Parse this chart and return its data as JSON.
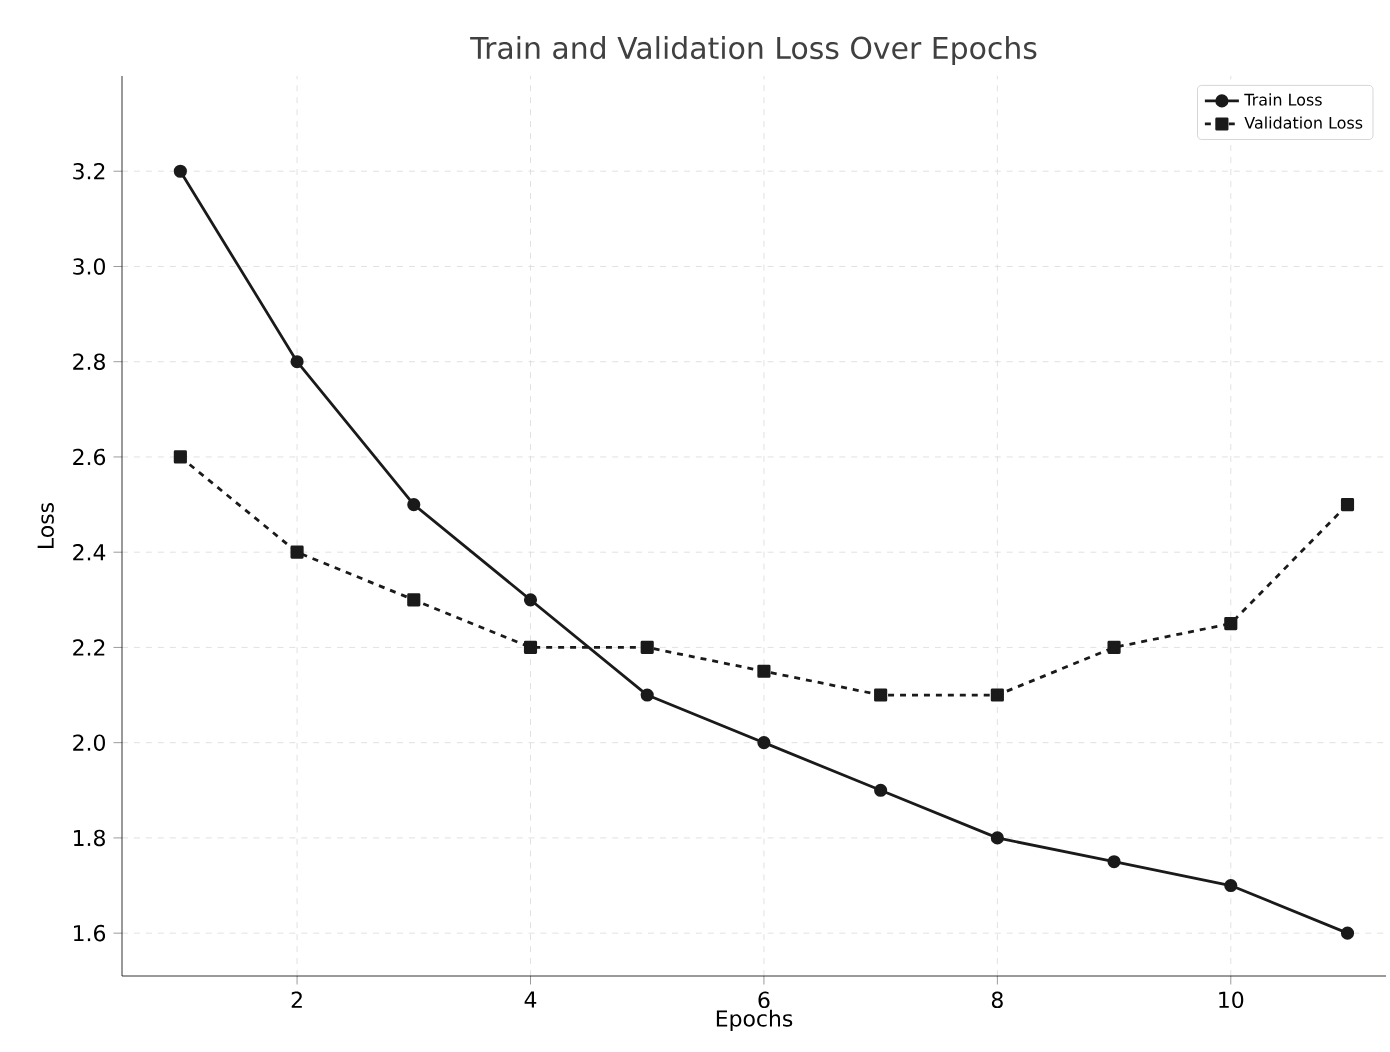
{
  "chart_data": {
    "type": "line",
    "title": "Train and Validation Loss Over Epochs",
    "xlabel": "Epochs",
    "ylabel": "Loss",
    "x": [
      1,
      2,
      3,
      4,
      5,
      6,
      7,
      8,
      9,
      10,
      11
    ],
    "series": [
      {
        "name": "Train Loss",
        "color": "#1a1a1a",
        "marker": "circle",
        "line_style": "solid",
        "values": [
          3.2,
          2.8,
          2.5,
          2.3,
          2.1,
          2.0,
          1.9,
          1.8,
          1.75,
          1.7,
          1.6
        ]
      },
      {
        "name": "Validation Loss",
        "color": "#1a1a1a",
        "marker": "square",
        "line_style": "dashed",
        "values": [
          2.6,
          2.4,
          2.3,
          2.2,
          2.2,
          2.15,
          2.1,
          2.1,
          2.2,
          2.25,
          2.5
        ]
      }
    ],
    "xlim": [
      0.5,
      11.33
    ],
    "ylim": [
      1.51,
      3.4
    ],
    "xticks": [
      2,
      4,
      6,
      8,
      10
    ],
    "yticks": [
      {
        "value": 1.6,
        "label": "1.6"
      },
      {
        "value": 1.8,
        "label": "1.8"
      },
      {
        "value": 2.0,
        "label": "2.0"
      },
      {
        "value": 2.2,
        "label": "2.2"
      },
      {
        "value": 2.4,
        "label": "2.4"
      },
      {
        "value": 2.6,
        "label": "2.6"
      },
      {
        "value": 2.8,
        "label": "2.8"
      },
      {
        "value": 3.0,
        "label": "3.0"
      },
      {
        "value": 3.2,
        "label": "3.2"
      }
    ],
    "grid": true,
    "legend": "top right"
  }
}
